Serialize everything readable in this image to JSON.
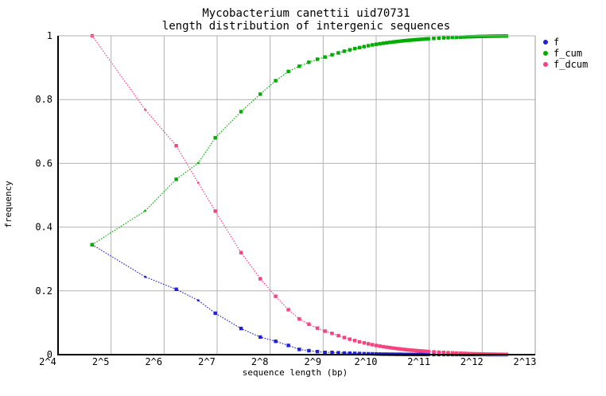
{
  "chart": {
    "title_line1": "Mycobacterium canettii uid70731",
    "title_line2": "length distribution of intergenic sequences",
    "xlabel": "sequence length (bp)",
    "ylabel": "frequency",
    "colors": {
      "background": "#ffffff",
      "grid": "#b2b2b2",
      "axis": "#000000",
      "axis_light": "#999999"
    }
  },
  "chart_data": {
    "type": "line",
    "title": "Mycobacterium canettii uid70731 - length distribution of intergenic sequences",
    "xlabel": "sequence length (bp)",
    "ylabel": "frequency",
    "x_scale": "log2",
    "xlim_log2": [
      4,
      13
    ],
    "ylim": [
      0,
      1
    ],
    "grid": true,
    "legend_position": "outside-right-top",
    "x_tick_labels": [
      "2^4",
      "2^5",
      "2^6",
      "2^7",
      "2^8",
      "2^9",
      "2^10",
      "2^11",
      "2^12",
      "2^13"
    ],
    "x_tick_log2": [
      4,
      5,
      6,
      7,
      8,
      9,
      10,
      11,
      12,
      13
    ],
    "y_tick_labels": [
      "0",
      "0.2",
      "0.4",
      "0.6",
      "0.8",
      "1"
    ],
    "y_tick_values": [
      0,
      0.2,
      0.4,
      0.6,
      0.8,
      1
    ],
    "marker_interval_bp": 50,
    "x": [
      25,
      50,
      75,
      100,
      125,
      175,
      225,
      275,
      325,
      375,
      425,
      475,
      525,
      575,
      625,
      675,
      725,
      775,
      825,
      875,
      925,
      975,
      1025,
      1075,
      1125,
      1175,
      1225,
      1275,
      1325,
      1375,
      1425,
      1475,
      1525,
      1575,
      1625,
      1675,
      1725,
      1775,
      1825,
      1875,
      1925,
      1975,
      2025,
      2175,
      2325,
      2475,
      2625,
      2775,
      2925,
      3075,
      3225,
      3375,
      3525,
      3675,
      3825,
      3975,
      4125,
      4275,
      4425,
      4575,
      4725,
      4875,
      5025,
      5175,
      5325,
      5475,
      5625
    ],
    "series": [
      {
        "name": "f",
        "color": "#2121d3",
        "values": [
          0.345,
          0.244,
          0.205,
          0.17,
          0.13,
          0.082,
          0.055,
          0.042,
          0.029,
          0.0165,
          0.0125,
          0.0095,
          0.007,
          0.007,
          0.0059,
          0.0051,
          0.0044,
          0.0039,
          0.0034,
          0.003,
          0.0027,
          0.0024,
          0.0021,
          0.0017,
          0.00155,
          0.00142,
          0.0013,
          0.00119,
          0.00109,
          0.001,
          0.00092,
          0.00085,
          0.00078,
          0.00072,
          0.00067,
          0.00062,
          0.00058,
          0.00054,
          0.0005,
          0.00047,
          0.00044,
          0.00041,
          0.00038,
          0.00036,
          0.00033,
          0.00031,
          0.00029,
          0.00027,
          0.00025,
          0.00023,
          0.00022,
          0.0002,
          0.00019,
          0.00018,
          0.00017,
          0.00015,
          0.00014,
          0.00013,
          0.00012,
          0.00012,
          0.00011,
          0.0001,
          9e-05,
          9e-05,
          8e-05,
          8e-05,
          7e-05
        ]
      },
      {
        "name": "f_cum",
        "color": "#00ac00",
        "values": [
          0.345,
          0.451,
          0.55,
          0.601,
          0.68,
          0.762,
          0.817,
          0.859,
          0.888,
          0.9045,
          0.917,
          0.9265,
          0.9335,
          0.9405,
          0.9464,
          0.9515,
          0.9559,
          0.9598,
          0.9632,
          0.9662,
          0.9689,
          0.9713,
          0.9734,
          0.9751,
          0.97665,
          0.97807,
          0.97937,
          0.98056,
          0.98165,
          0.98265,
          0.98357,
          0.98442,
          0.9852,
          0.98592,
          0.98659,
          0.98721,
          0.98779,
          0.98833,
          0.98883,
          0.9893,
          0.98974,
          0.99015,
          0.99053,
          0.99166,
          0.99253,
          0.99341,
          0.99409,
          0.99477,
          0.99535,
          0.99583,
          0.99632,
          0.9967,
          0.99709,
          0.99738,
          0.99767,
          0.99795,
          0.99814,
          0.99833,
          0.99852,
          0.99872,
          0.99881,
          0.9989,
          0.99899,
          0.99909,
          0.99918,
          0.99928,
          0.99932
        ]
      },
      {
        "name": "f_dcum",
        "color": "#f4437f",
        "values": [
          1.0,
          0.768,
          0.655,
          0.539,
          0.45,
          0.32,
          0.238,
          0.183,
          0.141,
          0.112,
          0.0955,
          0.083,
          0.0735,
          0.0665,
          0.0595,
          0.0536,
          0.0485,
          0.0441,
          0.0402,
          0.0368,
          0.0338,
          0.0311,
          0.0287,
          0.0266,
          0.0249,
          0.02335,
          0.02193,
          0.02063,
          0.01944,
          0.01835,
          0.01735,
          0.01643,
          0.01558,
          0.0148,
          0.01408,
          0.01341,
          0.01279,
          0.01221,
          0.01167,
          0.01117,
          0.0107,
          0.01026,
          0.00985,
          0.0087,
          0.0078,
          0.0069,
          0.0062,
          0.0055,
          0.0049,
          0.0044,
          0.0039,
          0.0035,
          0.0031,
          0.0028,
          0.0025,
          0.0022,
          0.002,
          0.0018,
          0.0016,
          0.0014,
          0.0013,
          0.0012,
          0.0011,
          0.001,
          0.0009,
          0.0008,
          0.0008
        ]
      }
    ]
  }
}
